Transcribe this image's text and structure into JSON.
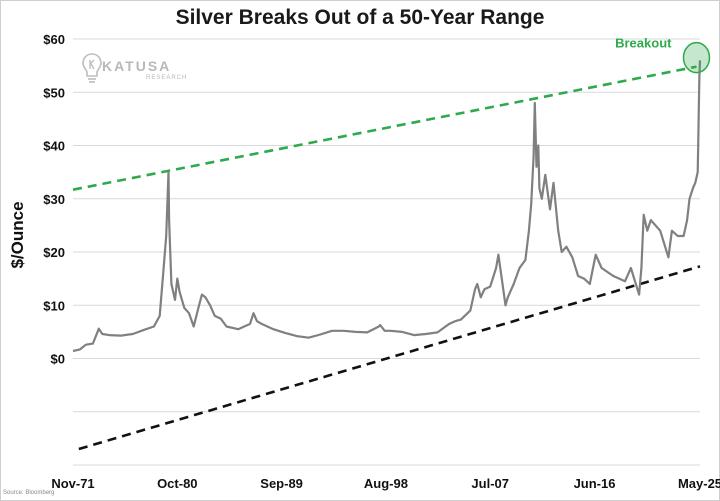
{
  "source": "Source: Bloomberg",
  "logo": {
    "name": "KATUSA",
    "sub": "RESEARCH"
  },
  "chart_data": {
    "type": "line",
    "title": "Silver Breaks Out of a 50-Year Range",
    "xlabel": "",
    "ylabel": "$/Ounce",
    "ylim": [
      -20,
      60
    ],
    "y_ticks": [
      {
        "value": 60,
        "label": "$60"
      },
      {
        "value": 50,
        "label": "$50"
      },
      {
        "value": 40,
        "label": "$40"
      },
      {
        "value": 30,
        "label": "$30"
      },
      {
        "value": 20,
        "label": "$20"
      },
      {
        "value": 10,
        "label": "$10"
      },
      {
        "value": 0,
        "label": "$0"
      },
      {
        "value": -10,
        "label": ""
      },
      {
        "value": -20,
        "label": ""
      }
    ],
    "x_ticks": [
      {
        "year": 1971.9,
        "label": "Nov-71"
      },
      {
        "year": 1980.8,
        "label": "Oct-80"
      },
      {
        "year": 1989.7,
        "label": "Sep-89"
      },
      {
        "year": 1998.6,
        "label": "Aug-98"
      },
      {
        "year": 2007.5,
        "label": "Jul-07"
      },
      {
        "year": 2016.4,
        "label": "Jun-16"
      },
      {
        "year": 2025.4,
        "label": "May-25"
      }
    ],
    "xlim": [
      1971.9,
      2025.4
    ],
    "grid": true,
    "colors": {
      "price": "#808080",
      "upper_trend": "#2eaa4d",
      "lower_trend": "#111111",
      "highlight": "#2eaa4d"
    },
    "series": [
      {
        "x": [
          1971.9,
          1972.5,
          1973.0,
          1973.6,
          1974.1,
          1974.4,
          1975.0,
          1976.0,
          1977.0,
          1978.0,
          1978.8,
          1979.3,
          1979.6,
          1979.85,
          1980.05,
          1980.1,
          1980.3,
          1980.6,
          1980.8,
          1981.0,
          1981.4,
          1981.8,
          1982.2,
          1982.6,
          1982.9,
          1983.2,
          1983.6,
          1984.0,
          1984.5,
          1985.0,
          1986.0,
          1987.0,
          1987.3,
          1987.6,
          1988.0,
          1989.0,
          1990.0,
          1991.0,
          1992.0,
          1993.0,
          1994.0,
          1995.0,
          1996.0,
          1997.0,
          1998.0,
          1998.1,
          1998.5,
          1999.0,
          2000.0,
          2001.0,
          2002.0,
          2003.0,
          2004.0,
          2004.5,
          2005.0,
          2005.8,
          2006.2,
          2006.4,
          2006.7,
          2007.0,
          2007.5,
          2008.0,
          2008.2,
          2008.8,
          2009.0,
          2009.5,
          2010.0,
          2010.5,
          2010.8,
          2011.0,
          2011.2,
          2011.3,
          2011.45,
          2011.6,
          2011.7,
          2011.9,
          2012.2,
          2012.6,
          2012.9,
          2013.3,
          2013.6,
          2014.0,
          2014.5,
          2015.0,
          2015.5,
          2016.0,
          2016.5,
          2017.0,
          2018.0,
          2019.0,
          2019.5,
          2020.2,
          2020.4,
          2020.6,
          2020.9,
          2021.2,
          2021.6,
          2022.0,
          2022.7,
          2023.0,
          2023.5,
          2024.0,
          2024.3,
          2024.5,
          2024.8,
          2025.0,
          2025.2,
          2025.25,
          2025.3,
          2025.35,
          2025.4
        ],
        "values": [
          1.4,
          1.7,
          2.6,
          2.8,
          5.6,
          4.6,
          4.4,
          4.3,
          4.6,
          5.4,
          6.0,
          8.0,
          16.0,
          23.0,
          35.0,
          26.0,
          14.0,
          11.0,
          15.0,
          12.5,
          9.5,
          8.5,
          6.0,
          9.5,
          12.0,
          11.5,
          10.0,
          8.0,
          7.5,
          6.0,
          5.5,
          6.5,
          8.5,
          7.0,
          6.5,
          5.5,
          4.8,
          4.2,
          3.9,
          4.5,
          5.2,
          5.2,
          5.0,
          4.9,
          6.0,
          6.3,
          5.2,
          5.2,
          5.0,
          4.4,
          4.6,
          4.9,
          6.5,
          7.0,
          7.3,
          9.0,
          13.0,
          14.0,
          11.5,
          13.0,
          13.5,
          17.0,
          19.5,
          10.0,
          11.5,
          14.0,
          17.0,
          18.5,
          24.0,
          29.0,
          38.0,
          48.0,
          36.0,
          40.0,
          32.0,
          30.0,
          34.5,
          28.0,
          33.0,
          24.0,
          20.0,
          21.0,
          19.0,
          15.5,
          15.0,
          14.0,
          19.5,
          17.0,
          15.5,
          14.5,
          17.0,
          12.0,
          17.0,
          27.0,
          24.0,
          26.0,
          25.0,
          24.0,
          19.0,
          24.0,
          23.0,
          23.0,
          26.0,
          30.0,
          32.0,
          33.0,
          35.0,
          40.0,
          47.0,
          53.0,
          56.0
        ]
      }
    ],
    "trendlines": [
      {
        "kind": "upper",
        "style": "dashed",
        "x": [
          1971.9,
          2025.1
        ],
        "values": [
          31.7,
          54.8
        ]
      },
      {
        "kind": "lower",
        "style": "dashed",
        "x": [
          1972.4,
          2025.4
        ],
        "values": [
          -17.0,
          17.3
        ]
      }
    ],
    "annotations": [
      {
        "text": "Breakout",
        "x": 2025.1,
        "y": 56.5
      }
    ]
  }
}
